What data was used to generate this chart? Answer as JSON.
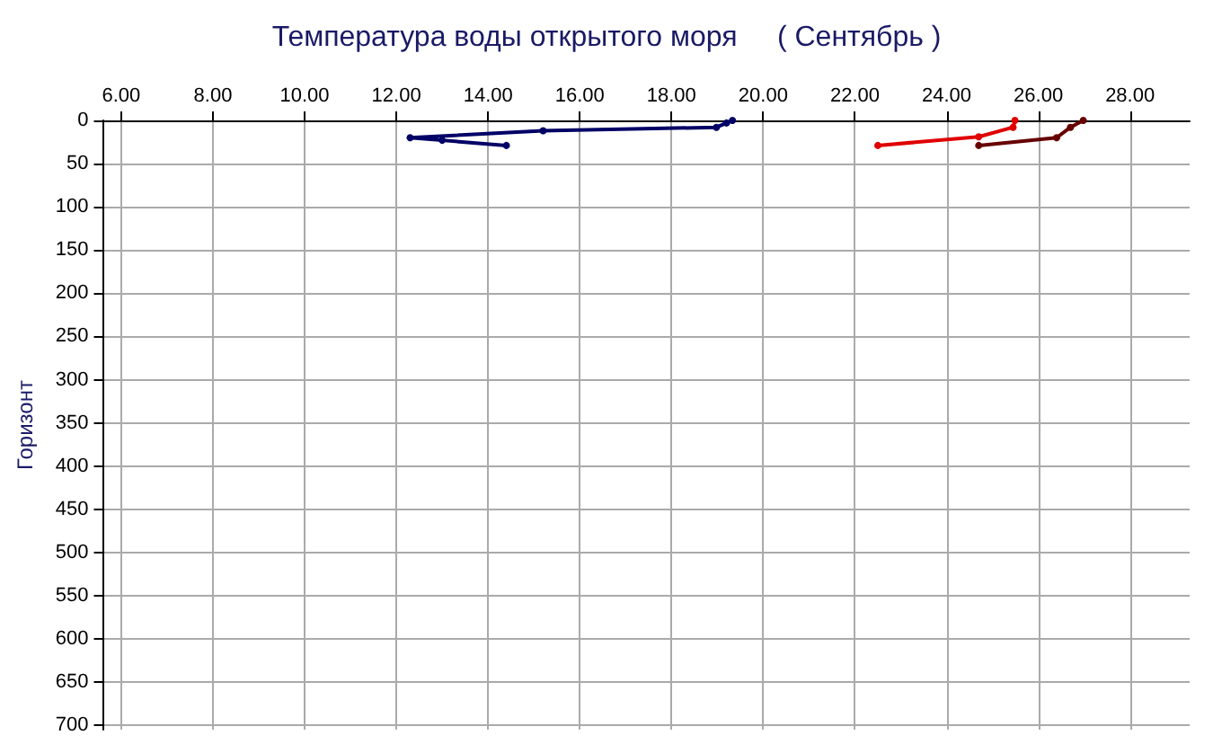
{
  "chart_data": {
    "type": "line",
    "title": "Температура воды открытого моря     ( Сентябрь )",
    "ylabel": "Горизонт",
    "xlim": [
      5.6,
      29.3
    ],
    "xticks": [
      {
        "value": 6,
        "label": "6.00"
      },
      {
        "value": 8,
        "label": "8.00"
      },
      {
        "value": 10,
        "label": "10.00"
      },
      {
        "value": 12,
        "label": "12.00"
      },
      {
        "value": 14,
        "label": "14.00"
      },
      {
        "value": 16,
        "label": "16.00"
      },
      {
        "value": 18,
        "label": "18.00"
      },
      {
        "value": 20,
        "label": "20.00"
      },
      {
        "value": 22,
        "label": "22.00"
      },
      {
        "value": 24,
        "label": "24.00"
      },
      {
        "value": 26,
        "label": "26.00"
      },
      {
        "value": 28,
        "label": "28.00"
      }
    ],
    "ylim": [
      705,
      0
    ],
    "yticks": [
      0,
      50,
      100,
      150,
      200,
      250,
      300,
      350,
      400,
      450,
      500,
      550,
      600,
      650,
      700
    ],
    "grid": true,
    "marker": "circle",
    "line_style": "solid",
    "series": [
      {
        "color": "#000066",
        "x": [
          19.33,
          19.2,
          18.98,
          15.2,
          12.3,
          13.0,
          14.4
        ],
        "values": [
          0,
          3,
          8,
          12,
          20,
          23,
          29
        ]
      },
      {
        "color": "#e00000",
        "x": [
          25.49,
          25.45,
          24.7,
          22.5
        ],
        "values": [
          0,
          8,
          19,
          29
        ]
      },
      {
        "color": "#660000",
        "x": [
          26.98,
          26.7,
          26.4,
          24.7
        ],
        "values": [
          0,
          8,
          20,
          29
        ]
      }
    ]
  }
}
